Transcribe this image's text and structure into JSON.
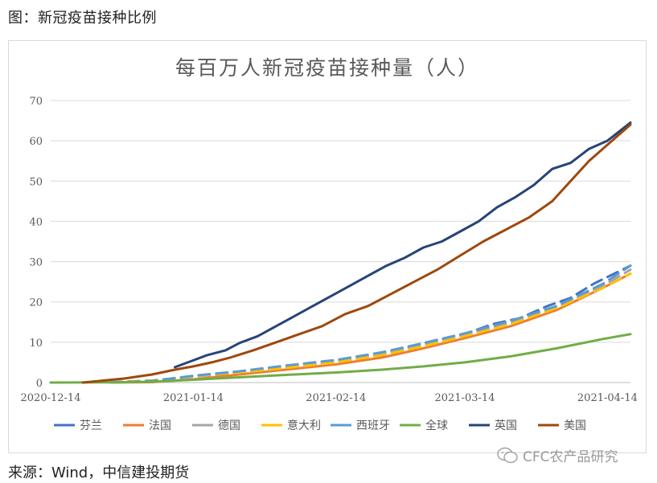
{
  "caption": "图：新冠疫苗接种比例",
  "source": "来源：Wind，中信建投期货",
  "watermark": "CFC农产品研究",
  "chart_data": {
    "type": "line",
    "title": "每百万人新冠疫苗接种量（人）",
    "x_start": "2020-12-14",
    "x_end": "2021-04-19",
    "x_ticks": [
      "2020-12-14",
      "2021-01-14",
      "2021-02-14",
      "2021-03-14",
      "2021-04-14"
    ],
    "ylim": [
      0,
      70
    ],
    "y_ticks": [
      0,
      10,
      20,
      30,
      40,
      50,
      60,
      70
    ],
    "grid": true,
    "legend_position": "bottom",
    "series": [
      {
        "name": "芬兰",
        "color": "#4472c4",
        "dashed": true,
        "points": [
          [
            "2020-12-27",
            0.1
          ],
          [
            "2021-01-05",
            0.5
          ],
          [
            "2021-01-14",
            1.5
          ],
          [
            "2021-01-24",
            2.5
          ],
          [
            "2021-02-03",
            3.6
          ],
          [
            "2021-02-14",
            5.0
          ],
          [
            "2021-02-24",
            7.0
          ],
          [
            "2021-03-05",
            9.8
          ],
          [
            "2021-03-14",
            12.0
          ],
          [
            "2021-03-20",
            14.5
          ],
          [
            "2021-03-26",
            16.0
          ],
          [
            "2021-04-01",
            19.0
          ],
          [
            "2021-04-06",
            21.0
          ],
          [
            "2021-04-11",
            24.5
          ],
          [
            "2021-04-19",
            29.0
          ]
        ]
      },
      {
        "name": "法国",
        "color": "#ed7d31",
        "dashed": false,
        "points": [
          [
            "2020-12-27",
            0.0
          ],
          [
            "2021-01-05",
            0.1
          ],
          [
            "2021-01-14",
            0.8
          ],
          [
            "2021-01-24",
            2.0
          ],
          [
            "2021-02-03",
            3.2
          ],
          [
            "2021-02-14",
            4.5
          ],
          [
            "2021-02-24",
            6.2
          ],
          [
            "2021-03-05",
            8.5
          ],
          [
            "2021-03-14",
            11.0
          ],
          [
            "2021-03-24",
            14.0
          ],
          [
            "2021-04-03",
            18.0
          ],
          [
            "2021-04-13",
            23.5
          ],
          [
            "2021-04-19",
            27.0
          ]
        ]
      },
      {
        "name": "德国",
        "color": "#a5a5a5",
        "dashed": true,
        "points": [
          [
            "2020-12-27",
            0.0
          ],
          [
            "2021-01-05",
            0.3
          ],
          [
            "2021-01-14",
            1.5
          ],
          [
            "2021-01-24",
            2.6
          ],
          [
            "2021-02-03",
            3.8
          ],
          [
            "2021-02-14",
            5.2
          ],
          [
            "2021-02-24",
            7.0
          ],
          [
            "2021-03-05",
            9.3
          ],
          [
            "2021-03-14",
            11.8
          ],
          [
            "2021-03-24",
            14.8
          ],
          [
            "2021-04-03",
            18.5
          ],
          [
            "2021-04-13",
            24.0
          ],
          [
            "2021-04-19",
            28.0
          ]
        ]
      },
      {
        "name": "意大利",
        "color": "#ffc000",
        "dashed": true,
        "points": [
          [
            "2020-12-27",
            0.0
          ],
          [
            "2021-01-05",
            0.5
          ],
          [
            "2021-01-14",
            1.6
          ],
          [
            "2021-01-24",
            2.5
          ],
          [
            "2021-02-03",
            3.6
          ],
          [
            "2021-02-14",
            5.0
          ],
          [
            "2021-02-24",
            6.8
          ],
          [
            "2021-03-05",
            9.0
          ],
          [
            "2021-03-14",
            11.5
          ],
          [
            "2021-03-24",
            14.5
          ],
          [
            "2021-04-03",
            18.5
          ],
          [
            "2021-04-13",
            23.5
          ],
          [
            "2021-04-19",
            27.0
          ]
        ]
      },
      {
        "name": "西班牙",
        "color": "#5b9bd5",
        "dashed": true,
        "points": [
          [
            "2020-12-27",
            0.0
          ],
          [
            "2021-01-05",
            0.4
          ],
          [
            "2021-01-14",
            1.7
          ],
          [
            "2021-01-24",
            2.8
          ],
          [
            "2021-02-03",
            4.2
          ],
          [
            "2021-02-14",
            5.6
          ],
          [
            "2021-02-24",
            7.5
          ],
          [
            "2021-03-05",
            9.8
          ],
          [
            "2021-03-14",
            12.2
          ],
          [
            "2021-03-24",
            15.3
          ],
          [
            "2021-04-03",
            19.0
          ],
          [
            "2021-04-13",
            24.5
          ],
          [
            "2021-04-19",
            29.0
          ]
        ]
      },
      {
        "name": "全球",
        "color": "#70ad47",
        "dashed": false,
        "points": [
          [
            "2020-12-14",
            0.0
          ],
          [
            "2020-12-27",
            0.05
          ],
          [
            "2021-01-05",
            0.2
          ],
          [
            "2021-01-14",
            0.7
          ],
          [
            "2021-01-24",
            1.3
          ],
          [
            "2021-02-03",
            1.9
          ],
          [
            "2021-02-14",
            2.5
          ],
          [
            "2021-02-24",
            3.2
          ],
          [
            "2021-03-05",
            4.0
          ],
          [
            "2021-03-14",
            5.0
          ],
          [
            "2021-03-24",
            6.5
          ],
          [
            "2021-04-03",
            8.5
          ],
          [
            "2021-04-13",
            10.8
          ],
          [
            "2021-04-19",
            12.0
          ]
        ]
      },
      {
        "name": "英国",
        "color": "#264478",
        "dashed": false,
        "points": [
          [
            "2021-01-10",
            3.8
          ],
          [
            "2021-01-14",
            5.5
          ],
          [
            "2021-01-17",
            6.8
          ],
          [
            "2021-01-21",
            8.0
          ],
          [
            "2021-01-24",
            9.8
          ],
          [
            "2021-01-28",
            11.5
          ],
          [
            "2021-02-01",
            14.0
          ],
          [
            "2021-02-05",
            16.5
          ],
          [
            "2021-02-09",
            19.0
          ],
          [
            "2021-02-13",
            21.5
          ],
          [
            "2021-02-17",
            24.0
          ],
          [
            "2021-02-21",
            26.5
          ],
          [
            "2021-02-25",
            29.0
          ],
          [
            "2021-03-01",
            31.0
          ],
          [
            "2021-03-05",
            33.5
          ],
          [
            "2021-03-09",
            35.0
          ],
          [
            "2021-03-13",
            37.5
          ],
          [
            "2021-03-17",
            40.0
          ],
          [
            "2021-03-21",
            43.5
          ],
          [
            "2021-03-25",
            46.0
          ],
          [
            "2021-03-29",
            49.0
          ],
          [
            "2021-04-02",
            53.0
          ],
          [
            "2021-04-06",
            54.5
          ],
          [
            "2021-04-10",
            58.0
          ],
          [
            "2021-04-14",
            60.0
          ],
          [
            "2021-04-19",
            64.5
          ]
        ]
      },
      {
        "name": "美国",
        "color": "#9e480e",
        "dashed": false,
        "points": [
          [
            "2020-12-21",
            0.0
          ],
          [
            "2020-12-30",
            1.0
          ],
          [
            "2021-01-05",
            2.0
          ],
          [
            "2021-01-10",
            3.2
          ],
          [
            "2021-01-14",
            4.0
          ],
          [
            "2021-01-18",
            5.0
          ],
          [
            "2021-01-22",
            6.2
          ],
          [
            "2021-01-27",
            8.0
          ],
          [
            "2021-02-01",
            10.0
          ],
          [
            "2021-02-06",
            12.0
          ],
          [
            "2021-02-11",
            14.0
          ],
          [
            "2021-02-16",
            17.0
          ],
          [
            "2021-02-21",
            19.0
          ],
          [
            "2021-02-26",
            22.0
          ],
          [
            "2021-03-03",
            25.0
          ],
          [
            "2021-03-08",
            28.0
          ],
          [
            "2021-03-13",
            31.5
          ],
          [
            "2021-03-18",
            35.0
          ],
          [
            "2021-03-23",
            38.0
          ],
          [
            "2021-03-28",
            41.0
          ],
          [
            "2021-04-02",
            45.0
          ],
          [
            "2021-04-06",
            50.0
          ],
          [
            "2021-04-10",
            55.0
          ],
          [
            "2021-04-15",
            60.0
          ],
          [
            "2021-04-19",
            64.0
          ]
        ]
      }
    ]
  }
}
